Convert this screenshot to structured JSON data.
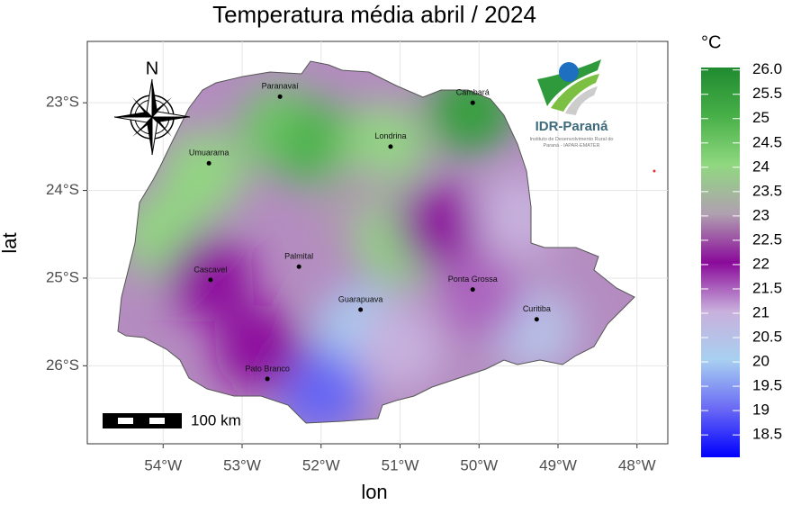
{
  "chart_data": {
    "type": "map",
    "title": "Temperatura média abril / 2024",
    "x_label": "lon",
    "y_label": "lat",
    "xlim": [
      -54.96,
      -47.61
    ],
    "ylim": [
      -26.89,
      -22.3
    ],
    "xticks": [
      {
        "value": -54,
        "label": "54°W"
      },
      {
        "value": -53,
        "label": "53°W"
      },
      {
        "value": -52,
        "label": "52°W"
      },
      {
        "value": -51,
        "label": "51°W"
      },
      {
        "value": -50,
        "label": "50°W"
      },
      {
        "value": -49,
        "label": "49°W"
      },
      {
        "value": -48,
        "label": "48°W"
      }
    ],
    "yticks": [
      {
        "value": -23,
        "label": "23°S"
      },
      {
        "value": -24,
        "label": "24°S"
      },
      {
        "value": -25,
        "label": "25°S"
      },
      {
        "value": -26,
        "label": "26°S"
      }
    ],
    "grid": true,
    "legend_title": "°C",
    "clim": [
      18.04,
      26.05
    ],
    "colormap": [
      "#0000ff",
      "#6a6af5",
      "#a8d0f0",
      "#c8b0dc",
      "#8a0a9a",
      "#b0a0b0",
      "#90d880",
      "#48b048",
      "#208a30"
    ],
    "cticks": [
      18.5,
      19,
      19.5,
      20,
      20.5,
      21,
      21.5,
      22,
      22.5,
      23,
      23.5,
      24,
      24.5,
      25,
      25.5,
      {
        "value": 26,
        "label": "26.0"
      }
    ],
    "zones": [
      {
        "lon": -52.5,
        "lat": -23.3,
        "value": 24.5
      },
      {
        "lon": -52.0,
        "lat": -23.5,
        "value": 25
      },
      {
        "lon": -50.1,
        "lat": -23.1,
        "value": 25.5
      },
      {
        "lon": -53.5,
        "lat": -23.8,
        "value": 24
      },
      {
        "lon": -54.0,
        "lat": -24.5,
        "value": 24
      },
      {
        "lon": -53.4,
        "lat": -25.0,
        "value": 22
      },
      {
        "lon": -51.2,
        "lat": -23.5,
        "value": 24
      },
      {
        "lon": -51.5,
        "lat": -24.2,
        "value": 23
      },
      {
        "lon": -51.0,
        "lat": -24.6,
        "value": 24
      },
      {
        "lon": -50.5,
        "lat": -24.4,
        "value": 22
      },
      {
        "lon": -49.5,
        "lat": -24.3,
        "value": 21
      },
      {
        "lon": -51.5,
        "lat": -25.6,
        "value": 20
      },
      {
        "lon": -52.0,
        "lat": -26.3,
        "value": 19
      },
      {
        "lon": -49.3,
        "lat": -25.6,
        "value": 20.5
      },
      {
        "lon": -51.0,
        "lat": -25.8,
        "value": 21
      },
      {
        "lon": -52.8,
        "lat": -25.8,
        "value": 22
      },
      {
        "lon": -50.0,
        "lat": -25.2,
        "value": 21.5
      }
    ],
    "cities": [
      {
        "name": "Paranavaí",
        "lon": -52.52,
        "lat": -22.93
      },
      {
        "name": "Umuarama",
        "lon": -53.42,
        "lat": -23.69
      },
      {
        "name": "Londrina",
        "lon": -51.12,
        "lat": -23.5
      },
      {
        "name": "Cambará",
        "lon": -50.08,
        "lat": -23.0
      },
      {
        "name": "Cascavel",
        "lon": -53.4,
        "lat": -25.02
      },
      {
        "name": "Palmital",
        "lon": -52.28,
        "lat": -24.87
      },
      {
        "name": "Guarapuava",
        "lon": -51.5,
        "lat": -25.36
      },
      {
        "name": "Ponta Grossa",
        "lon": -50.08,
        "lat": -25.13
      },
      {
        "name": "Curitiba",
        "lon": -49.27,
        "lat": -25.47
      },
      {
        "name": "Pato Branco",
        "lon": -52.68,
        "lat": -26.15
      }
    ],
    "north_label": "N",
    "scale_label": "100 km",
    "logo_name": "IDR-Paraná",
    "logo_caption": "Instituto de Desenvolvimento Rural do Paraná - IAPAR-EMATER"
  }
}
